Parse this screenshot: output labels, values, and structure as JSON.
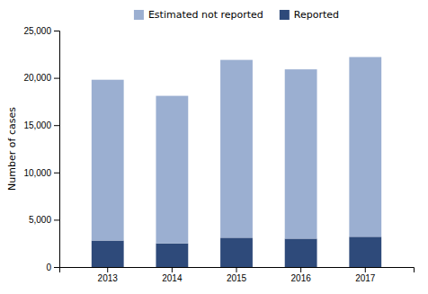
{
  "chart_data": {
    "type": "bar",
    "stacked": true,
    "categories": [
      "2013",
      "2014",
      "2015",
      "2016",
      "2017"
    ],
    "series": [
      {
        "name": "Reported",
        "color": "#2E4A7A",
        "values": [
          2800,
          2500,
          3100,
          3000,
          3200
        ]
      },
      {
        "name": "Estimated not reported",
        "color": "#9BAFD1",
        "values": [
          17000,
          15600,
          18800,
          17900,
          19000
        ]
      }
    ],
    "ylabel": "Number of cases",
    "ylim": [
      0,
      25000
    ],
    "yticks": [
      0,
      {
        "value": 5000,
        "label": "5,000"
      },
      {
        "value": 10000,
        "label": "10,000"
      },
      {
        "value": 15000,
        "label": "15,000"
      },
      {
        "value": 20000,
        "label": "20,000"
      },
      {
        "value": 25000,
        "label": "25,000"
      }
    ],
    "grid": false,
    "legend": "top"
  }
}
